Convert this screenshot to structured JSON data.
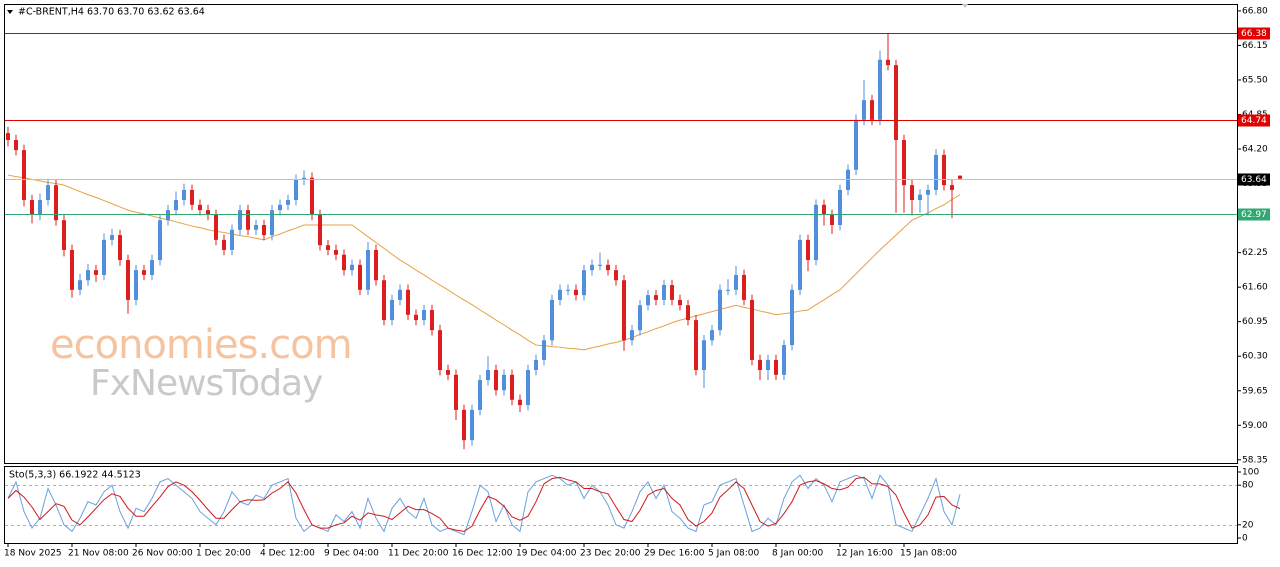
{
  "chart_data": [
    {
      "type": "candlestick",
      "title": "#C-BRENT,H4  63.70 63.70 63.62 63.64",
      "categories": [
        "18 Nov 2025",
        null,
        null,
        null,
        null,
        null,
        null,
        null,
        "21 Nov 08:00",
        null,
        null,
        null,
        null,
        null,
        null,
        null,
        "26 Nov 00:00",
        null,
        null,
        null,
        null,
        null,
        null,
        null,
        "1 Dec 20:00",
        null,
        null,
        null,
        null,
        null,
        null,
        null,
        "4 Dec 12:00",
        null,
        null,
        null,
        null,
        null,
        null,
        null,
        "9 Dec 04:00",
        null,
        null,
        null,
        null,
        null,
        null,
        null,
        "11 Dec 20:00",
        null,
        null,
        null,
        null,
        null,
        null,
        null,
        "16 Dec 12:00",
        null,
        null,
        null,
        null,
        null,
        null,
        null,
        "19 Dec 04:00",
        null,
        null,
        null,
        null,
        null,
        null,
        null,
        "23 Dec 20:00",
        null,
        null,
        null,
        null,
        null,
        null,
        null,
        "29 Dec 16:00",
        null,
        null,
        null,
        null,
        null,
        null,
        null,
        "5 Jan 08:00",
        null,
        null,
        null,
        null,
        null,
        null,
        null,
        "8 Jan 00:00",
        null,
        null,
        null,
        null,
        null,
        null,
        null,
        "12 Jan 16:00",
        null,
        null,
        null,
        null,
        null,
        null,
        null,
        "15 Jan 08:00",
        null,
        null,
        null,
        null,
        null,
        null,
        null
      ],
      "open": [
        64.5,
        64.37,
        64.18,
        63.24,
        62.96,
        63.24,
        63.52,
        62.86,
        62.3,
        61.55,
        61.73,
        61.92,
        61.83,
        62.49,
        62.58,
        62.11,
        61.36,
        61.92,
        61.83,
        62.11,
        62.86,
        63.05,
        63.24,
        63.43,
        63.15,
        63.05,
        62.96,
        62.49,
        62.3,
        62.68,
        63.05,
        62.68,
        62.77,
        62.58,
        63.05,
        63.15,
        63.24,
        63.62,
        63.66,
        62.96,
        62.39,
        62.3,
        62.21,
        61.92,
        62.02,
        61.55,
        62.3,
        61.73,
        60.98,
        61.36,
        61.55,
        61.08,
        60.98,
        61.17,
        60.79,
        60.04,
        59.95,
        59.29,
        58.72,
        59.29,
        59.85,
        60.04,
        59.66,
        59.95,
        59.48,
        59.38,
        60.04,
        60.23,
        60.6,
        61.36,
        61.55,
        61.55,
        61.45,
        61.92,
        62.02,
        62.02,
        61.92,
        61.73,
        60.6,
        60.79,
        61.26,
        61.45,
        61.36,
        61.64,
        61.36,
        61.26,
        60.98,
        60.04,
        60.6,
        60.79,
        61.55,
        61.55,
        61.83,
        61.36,
        60.23,
        60.04,
        60.23,
        59.95,
        60.51,
        61.55,
        62.49,
        62.11,
        63.15,
        62.96,
        62.77,
        63.43,
        63.81,
        64.75,
        65.12,
        64.75,
        65.88,
        65.78,
        64.37,
        63.52,
        63.24,
        63.34,
        63.43,
        64.09,
        63.52,
        63.7
      ],
      "high": [
        64.62,
        64.47,
        64.28,
        63.34,
        63.36,
        63.64,
        63.62,
        62.96,
        62.4,
        61.85,
        62.04,
        62.02,
        62.61,
        62.7,
        62.68,
        62.21,
        62.02,
        62.02,
        62.21,
        62.96,
        63.15,
        63.4,
        63.55,
        63.53,
        63.25,
        63.15,
        63.06,
        62.59,
        62.78,
        63.15,
        63.15,
        62.87,
        62.87,
        63.15,
        63.25,
        63.34,
        63.72,
        63.8,
        63.76,
        63.06,
        62.49,
        62.4,
        62.31,
        62.12,
        62.12,
        62.45,
        62.4,
        61.83,
        61.46,
        61.65,
        61.65,
        61.18,
        61.27,
        61.27,
        60.89,
        60.14,
        60.05,
        59.39,
        59.39,
        59.95,
        60.3,
        60.14,
        60.05,
        60.05,
        59.58,
        60.14,
        60.33,
        60.7,
        61.46,
        61.65,
        61.65,
        61.65,
        62.02,
        62.12,
        62.25,
        62.12,
        62.02,
        61.83,
        60.89,
        61.36,
        61.55,
        61.55,
        61.74,
        61.74,
        61.46,
        61.36,
        61.08,
        60.7,
        60.89,
        61.65,
        61.75,
        62.0,
        61.93,
        61.46,
        60.33,
        60.33,
        60.33,
        60.61,
        61.65,
        62.59,
        62.59,
        63.25,
        63.25,
        63.06,
        63.53,
        63.91,
        64.85,
        65.5,
        65.22,
        66.05,
        66.38,
        65.88,
        64.47,
        63.62,
        63.44,
        63.53,
        64.2,
        64.19,
        63.62,
        63.7
      ],
      "low": [
        64.25,
        64.08,
        63.12,
        62.8,
        62.86,
        63.14,
        62.76,
        62.18,
        61.4,
        61.45,
        61.63,
        61.7,
        61.73,
        62.39,
        62.0,
        61.1,
        61.26,
        61.73,
        61.73,
        62.01,
        62.76,
        62.95,
        63.14,
        63.05,
        62.95,
        62.86,
        62.39,
        62.2,
        62.2,
        62.58,
        62.58,
        62.58,
        62.48,
        62.48,
        62.95,
        63.05,
        63.14,
        63.52,
        62.86,
        62.29,
        62.2,
        62.11,
        61.82,
        61.82,
        61.45,
        61.45,
        61.63,
        60.88,
        60.88,
        61.26,
        60.98,
        60.88,
        60.88,
        60.69,
        59.94,
        59.85,
        59.1,
        58.55,
        58.62,
        59.19,
        59.75,
        59.56,
        59.56,
        59.38,
        59.25,
        59.28,
        59.94,
        60.13,
        60.5,
        61.26,
        61.45,
        61.35,
        61.35,
        61.82,
        61.92,
        61.82,
        61.63,
        60.4,
        60.5,
        60.69,
        61.16,
        61.26,
        61.26,
        61.26,
        61.16,
        60.88,
        59.94,
        59.7,
        60.5,
        60.69,
        61.45,
        61.45,
        61.26,
        60.13,
        59.85,
        59.85,
        59.85,
        59.85,
        60.41,
        61.45,
        61.9,
        62.01,
        62.76,
        62.6,
        62.67,
        63.33,
        63.71,
        64.65,
        64.65,
        64.65,
        65.68,
        63.0,
        63.0,
        62.95,
        63.0,
        62.95,
        63.33,
        63.42,
        62.9,
        63.62
      ],
      "close": [
        64.37,
        64.18,
        63.24,
        62.96,
        63.24,
        63.52,
        62.86,
        62.3,
        61.55,
        61.73,
        61.92,
        61.83,
        62.49,
        62.58,
        62.11,
        61.36,
        61.92,
        61.83,
        62.11,
        62.86,
        63.05,
        63.24,
        63.43,
        63.15,
        63.05,
        62.96,
        62.49,
        62.3,
        62.68,
        63.05,
        62.68,
        62.77,
        62.58,
        63.05,
        63.15,
        63.24,
        63.62,
        63.66,
        62.96,
        62.39,
        62.3,
        62.21,
        61.92,
        62.02,
        61.55,
        62.3,
        61.73,
        60.98,
        61.36,
        61.55,
        61.08,
        60.98,
        61.17,
        60.79,
        60.04,
        59.95,
        59.29,
        58.72,
        59.29,
        59.85,
        60.04,
        59.66,
        59.95,
        59.48,
        59.38,
        60.04,
        60.23,
        60.6,
        61.36,
        61.55,
        61.55,
        61.45,
        61.92,
        62.02,
        62.02,
        61.92,
        61.73,
        60.6,
        60.79,
        61.26,
        61.45,
        61.36,
        61.64,
        61.36,
        61.26,
        60.98,
        60.04,
        60.6,
        60.79,
        61.55,
        61.55,
        61.83,
        61.36,
        60.23,
        60.04,
        60.23,
        59.95,
        60.51,
        61.55,
        62.49,
        62.11,
        63.15,
        62.96,
        62.77,
        63.43,
        63.81,
        64.75,
        65.12,
        64.75,
        65.88,
        65.78,
        64.37,
        63.52,
        63.24,
        63.34,
        63.43,
        64.09,
        63.52,
        63.43,
        63.64
      ],
      "up_color": "#4f8fdc",
      "down_color": "#dc1e1e",
      "ma": {
        "color": "#e8a040",
        "values": [
          63.71,
          63.68,
          63.66,
          63.63,
          63.6,
          63.57,
          63.55,
          63.52,
          63.46,
          63.4,
          63.34,
          63.29,
          63.23,
          63.17,
          63.11,
          63.05,
          63.01,
          62.98,
          62.94,
          62.9,
          62.87,
          62.83,
          62.79,
          62.75,
          62.72,
          62.68,
          62.65,
          62.63,
          62.6,
          62.57,
          62.55,
          62.52,
          62.49,
          62.55,
          62.6,
          62.66,
          62.71,
          62.77,
          62.77,
          62.77,
          62.77,
          62.77,
          62.77,
          62.77,
          62.66,
          62.55,
          62.44,
          62.33,
          62.22,
          62.11,
          62.02,
          61.92,
          61.83,
          61.73,
          61.64,
          61.55,
          61.45,
          61.36,
          61.27,
          61.17,
          61.08,
          60.98,
          60.89,
          60.79,
          60.7,
          60.6,
          60.51,
          60.5,
          60.48,
          60.47,
          60.45,
          60.44,
          60.42,
          60.46,
          60.49,
          60.53,
          60.56,
          60.6,
          60.65,
          60.71,
          60.76,
          60.82,
          60.87,
          60.93,
          60.98,
          61.02,
          61.06,
          61.1,
          61.14,
          61.18,
          61.22,
          61.26,
          61.22,
          61.19,
          61.15,
          61.12,
          61.08,
          61.1,
          61.12,
          61.15,
          61.17,
          61.27,
          61.36,
          61.46,
          61.55,
          61.7,
          61.85,
          62.0,
          62.15,
          62.3,
          62.44,
          62.58,
          62.72,
          62.86,
          62.93,
          63.0,
          63.08,
          63.15,
          63.25,
          63.34
        ]
      },
      "levels": [
        {
          "value": 66.38,
          "color": "#e00000",
          "label_color": "#e00000"
        },
        {
          "value": 64.74,
          "color": "#e00000",
          "label_color": "#e00000"
        },
        {
          "value": 63.64,
          "color": "#c0c0c0",
          "label_color": "#000000"
        },
        {
          "value": 62.97,
          "color": "#30a870",
          "label_color": "#30a870"
        }
      ],
      "ylim": [
        58.29,
        66.93
      ],
      "yticks": [
        {
          "value": 66.8,
          "label": "66.80"
        },
        66.15,
        {
          "value": 65.5,
          "label": "65.50"
        },
        64.85,
        {
          "value": 64.2,
          "label": "64.20"
        },
        63.55,
        {
          "value": 62.9,
          "label": "62.90"
        },
        62.25,
        {
          "value": 61.6,
          "label": "61.60"
        },
        60.95,
        {
          "value": 60.3,
          "label": "60.30"
        },
        59.65,
        {
          "value": 59,
          "label": "59.00"
        },
        58.35
      ],
      "watermark": [
        "economies.com",
        "FxNewsToday"
      ]
    },
    {
      "type": "line",
      "title": "Sto(5,3,3) 66.1922 44.5123",
      "series": [
        {
          "color": "#6aa0dc",
          "values": [
            60,
            85,
            40,
            15,
            30,
            75,
            50,
            20,
            10,
            30,
            55,
            50,
            70,
            80,
            40,
            15,
            45,
            40,
            60,
            85,
            90,
            80,
            70,
            60,
            40,
            30,
            20,
            40,
            70,
            55,
            50,
            65,
            60,
            80,
            85,
            90,
            30,
            10,
            20,
            15,
            10,
            35,
            25,
            40,
            15,
            60,
            30,
            10,
            45,
            60,
            40,
            30,
            60,
            20,
            10,
            15,
            10,
            5,
            40,
            80,
            70,
            25,
            50,
            20,
            10,
            70,
            85,
            90,
            95,
            90,
            80,
            85,
            60,
            80,
            70,
            50,
            20,
            15,
            40,
            70,
            85,
            60,
            80,
            40,
            30,
            15,
            10,
            50,
            55,
            80,
            85,
            90,
            50,
            10,
            15,
            30,
            20,
            60,
            85,
            95,
            75,
            90,
            80,
            55,
            85,
            90,
            95,
            90,
            60,
            95,
            80,
            20,
            15,
            10,
            35,
            60,
            90,
            40,
            20,
            66.1922
          ]
        },
        {
          "color": "#d01818",
          "values": [
            60,
            72,
            62,
            47,
            28,
            40,
            52,
            48,
            27,
            20,
            32,
            45,
            58,
            67,
            63,
            45,
            33,
            33,
            48,
            62,
            78,
            85,
            80,
            70,
            57,
            43,
            30,
            30,
            43,
            55,
            58,
            57,
            58,
            68,
            75,
            85,
            68,
            43,
            20,
            15,
            15,
            20,
            23,
            33,
            27,
            38,
            35,
            33,
            28,
            38,
            48,
            43,
            43,
            37,
            30,
            15,
            12,
            10,
            18,
            42,
            63,
            58,
            48,
            32,
            27,
            33,
            55,
            82,
            90,
            92,
            88,
            85,
            75,
            75,
            70,
            67,
            47,
            28,
            25,
            42,
            65,
            72,
            75,
            60,
            50,
            28,
            18,
            25,
            38,
            62,
            73,
            85,
            75,
            50,
            25,
            18,
            22,
            37,
            55,
            80,
            85,
            87,
            82,
            75,
            73,
            77,
            90,
            92,
            82,
            82,
            78,
            65,
            38,
            15,
            20,
            35,
            62,
            63,
            50,
            44.5123
          ]
        }
      ],
      "ylim": [
        0,
        100
      ],
      "yticks": [
        0,
        20,
        80,
        100
      ],
      "levels": [
        20,
        80
      ]
    }
  ]
}
